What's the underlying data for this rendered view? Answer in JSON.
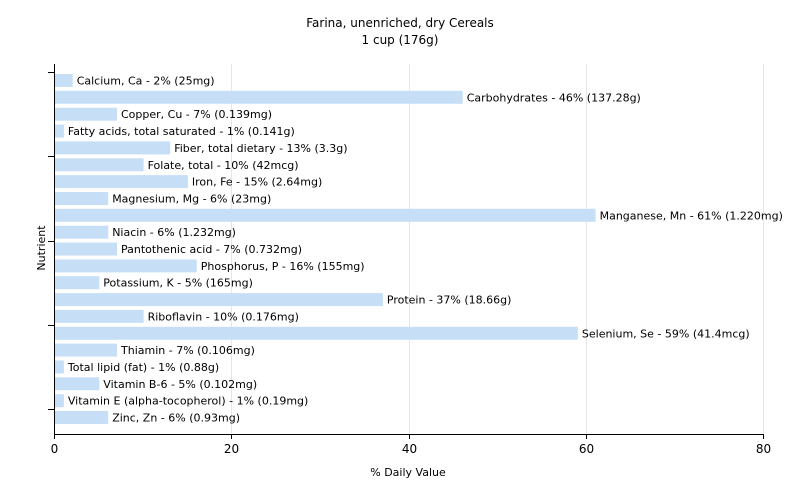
{
  "chart_data": {
    "type": "bar",
    "orientation": "horizontal",
    "title": "Farina, unenriched, dry Cereals",
    "subtitle": "1 cup (176g)",
    "xlabel": "% Daily Value",
    "ylabel": "Nutrient",
    "xlim": [
      0,
      80
    ],
    "xticks": [
      0,
      20,
      40,
      60,
      80
    ],
    "grid": true,
    "bar_color": "#c6dff7",
    "categories": [
      "Calcium, Ca",
      "Carbohydrates",
      "Copper, Cu",
      "Fatty acids, total saturated",
      "Fiber, total dietary",
      "Folate, total",
      "Iron, Fe",
      "Magnesium, Mg",
      "Manganese, Mn",
      "Niacin",
      "Pantothenic acid",
      "Phosphorus, P",
      "Potassium, K",
      "Protein",
      "Riboflavin",
      "Selenium, Se",
      "Thiamin",
      "Total lipid (fat)",
      "Vitamin B-6",
      "Vitamin E (alpha-tocopherol)",
      "Zinc, Zn"
    ],
    "values": [
      2,
      46,
      7,
      1,
      13,
      10,
      15,
      6,
      61,
      6,
      7,
      16,
      5,
      37,
      10,
      59,
      7,
      1,
      5,
      1,
      6
    ],
    "labels": [
      "Calcium, Ca - 2% (25mg)",
      "Carbohydrates - 46% (137.28g)",
      "Copper, Cu - 7% (0.139mg)",
      "Fatty acids, total saturated - 1% (0.141g)",
      "Fiber, total dietary - 13% (3.3g)",
      "Folate, total - 10% (42mcg)",
      "Iron, Fe - 15% (2.64mg)",
      "Magnesium, Mg - 6% (23mg)",
      "Manganese, Mn - 61% (1.220mg)",
      "Niacin - 6% (1.232mg)",
      "Pantothenic acid - 7% (0.732mg)",
      "Phosphorus, P - 16% (155mg)",
      "Potassium, K - 5% (165mg)",
      "Protein - 37% (18.66g)",
      "Riboflavin - 10% (0.176mg)",
      "Selenium, Se - 59% (41.4mcg)",
      "Thiamin - 7% (0.106mg)",
      "Total lipid (fat) - 1% (0.88g)",
      "Vitamin B-6 - 5% (0.102mg)",
      "Vitamin E (alpha-tocopherol) - 1% (0.19mg)",
      "Zinc, Zn - 6% (0.93mg)"
    ]
  }
}
